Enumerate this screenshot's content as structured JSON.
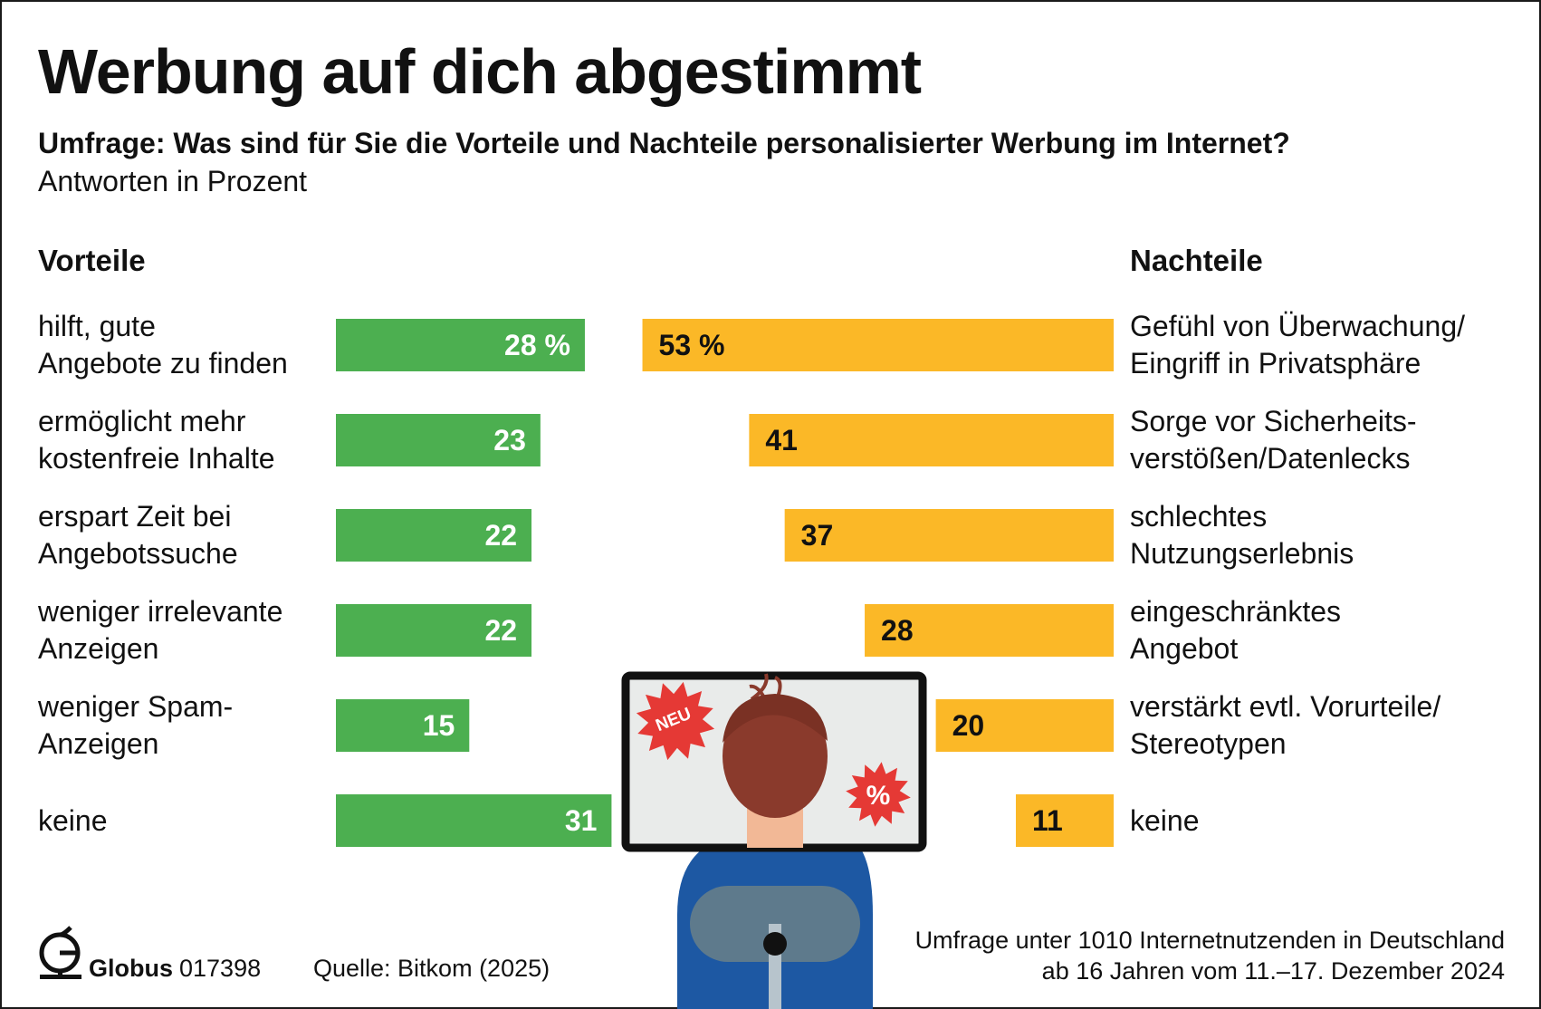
{
  "header": {
    "title": "Werbung auf dich abgestimmt",
    "subtitle": "Umfrage: Was sind für Sie die Vorteile und Nachteile personalisierter Werbung im Internet?",
    "unit": "Antworten in Prozent"
  },
  "colors": {
    "vorteile": "#4caf50",
    "nachteile": "#fbb827"
  },
  "chart_data": {
    "type": "bar",
    "orientation": "horizontal",
    "unit": "%",
    "series": [
      {
        "name": "Vorteile",
        "categories": [
          [
            "hilft, gute",
            "Angebote zu finden"
          ],
          [
            "ermöglicht mehr",
            "kostenfreie Inhalte"
          ],
          [
            "erspart Zeit bei",
            "Angebotssuche"
          ],
          [
            "weniger irrelevante",
            "Anzeigen"
          ],
          [
            "weniger Spam-",
            "Anzeigen"
          ],
          [
            "keine"
          ]
        ],
        "values": [
          28,
          23,
          22,
          22,
          15,
          31
        ],
        "value_labels": [
          "28 %",
          "23",
          "22",
          "22",
          "15",
          "31"
        ]
      },
      {
        "name": "Nachteile",
        "categories": [
          [
            "Gefühl von Überwachung/",
            "Eingriff in Privatsphäre"
          ],
          [
            "Sorge vor Sicherheits-",
            "verstößen/Datenlecks"
          ],
          [
            "schlechtes",
            "Nutzungserlebnis"
          ],
          [
            "eingeschränktes",
            "Angebot"
          ],
          [
            "verstärkt evtl. Vorurteile/",
            "Stereotypen"
          ],
          [
            "keine"
          ]
        ],
        "values": [
          53,
          41,
          37,
          28,
          20,
          11
        ],
        "value_labels": [
          "53 %",
          "41",
          "37",
          "28",
          "20",
          "11"
        ]
      }
    ]
  },
  "illustration": {
    "badge_new": "NEU",
    "badge_percent": "%",
    "icons": [
      "monitor-icon",
      "person-icon",
      "burst-badge-icon"
    ]
  },
  "footer": {
    "brand": "Globus",
    "number": "017398",
    "source": "Quelle: Bitkom (2025)",
    "note_line1": "Umfrage unter 1010 Internetnutzenden in Deutschland",
    "note_line2": "ab 16 Jahren vom 11.–17. Dezember 2024"
  }
}
